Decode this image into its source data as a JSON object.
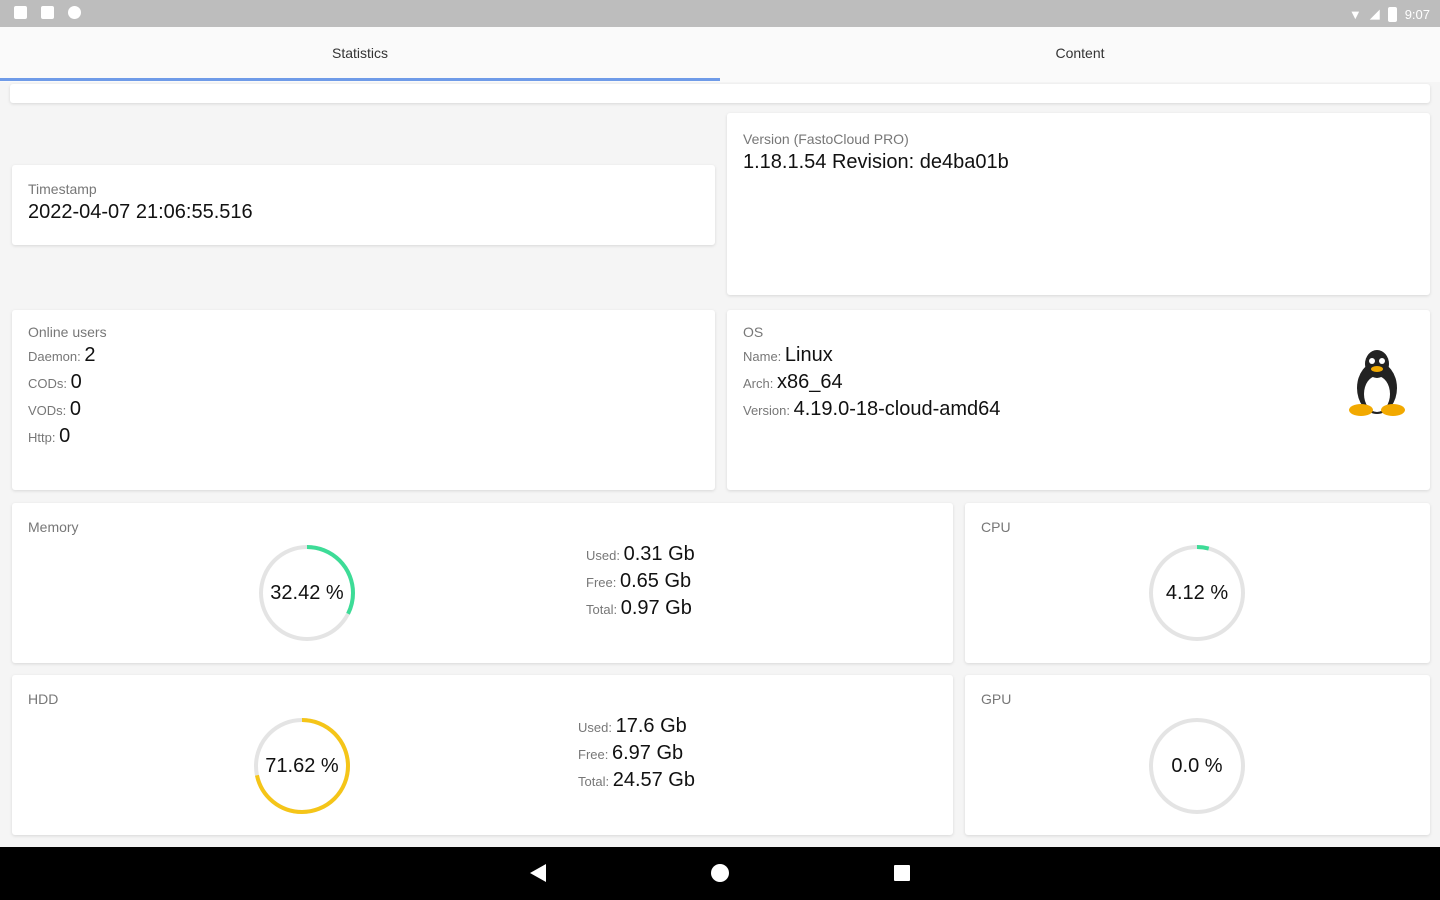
{
  "status_bar": {
    "time": "9:07",
    "icons": [
      "notification-icon",
      "sd-card-icon",
      "sync-icon",
      "wifi-icon",
      "signal-icon",
      "battery-icon"
    ]
  },
  "tabs": [
    {
      "label": "Statistics",
      "active": true
    },
    {
      "label": "Content",
      "active": false
    }
  ],
  "accent": "#6f9be8",
  "timestamp": {
    "label": "Timestamp",
    "value": "2022-04-07 21:06:55.516"
  },
  "version": {
    "label": "Version (FastoCloud PRO)",
    "value": "1.18.1.54 Revision: de4ba01b"
  },
  "online_users": {
    "label": "Online users",
    "rows": [
      {
        "k": "Daemon:",
        "v": "2"
      },
      {
        "k": "CODs:",
        "v": "0"
      },
      {
        "k": "VODs:",
        "v": "0"
      },
      {
        "k": "Http:",
        "v": "0"
      }
    ]
  },
  "os": {
    "label": "OS",
    "rows": [
      {
        "k": "Name:",
        "v": "Linux"
      },
      {
        "k": "Arch:",
        "v": "x86_64"
      },
      {
        "k": "Version:",
        "v": "4.19.0-18-cloud-amd64"
      }
    ],
    "logo": "linux-tux-icon"
  },
  "memory": {
    "label": "Memory",
    "percent": 32.42,
    "percent_text": "32.42 %",
    "color": "#3ddc97",
    "rows": [
      {
        "k": "Used:",
        "v": "0.31 Gb"
      },
      {
        "k": "Free:",
        "v": "0.65 Gb"
      },
      {
        "k": "Total:",
        "v": "0.97 Gb"
      }
    ]
  },
  "cpu": {
    "label": "CPU",
    "percent": 4.12,
    "percent_text": "4.12 %",
    "color": "#3ddc97"
  },
  "hdd": {
    "label": "HDD",
    "percent": 71.62,
    "percent_text": "71.62 %",
    "color": "#f5c518",
    "rows": [
      {
        "k": "Used:",
        "v": "17.6 Gb"
      },
      {
        "k": "Free:",
        "v": "6.97 Gb"
      },
      {
        "k": "Total:",
        "v": "24.57 Gb"
      }
    ]
  },
  "gpu": {
    "label": "GPU",
    "percent": 0.0,
    "percent_text": "0.0 %",
    "color": "#3ddc97"
  },
  "nav_bar": {
    "buttons": [
      "back-icon",
      "home-icon",
      "recents-icon"
    ]
  }
}
